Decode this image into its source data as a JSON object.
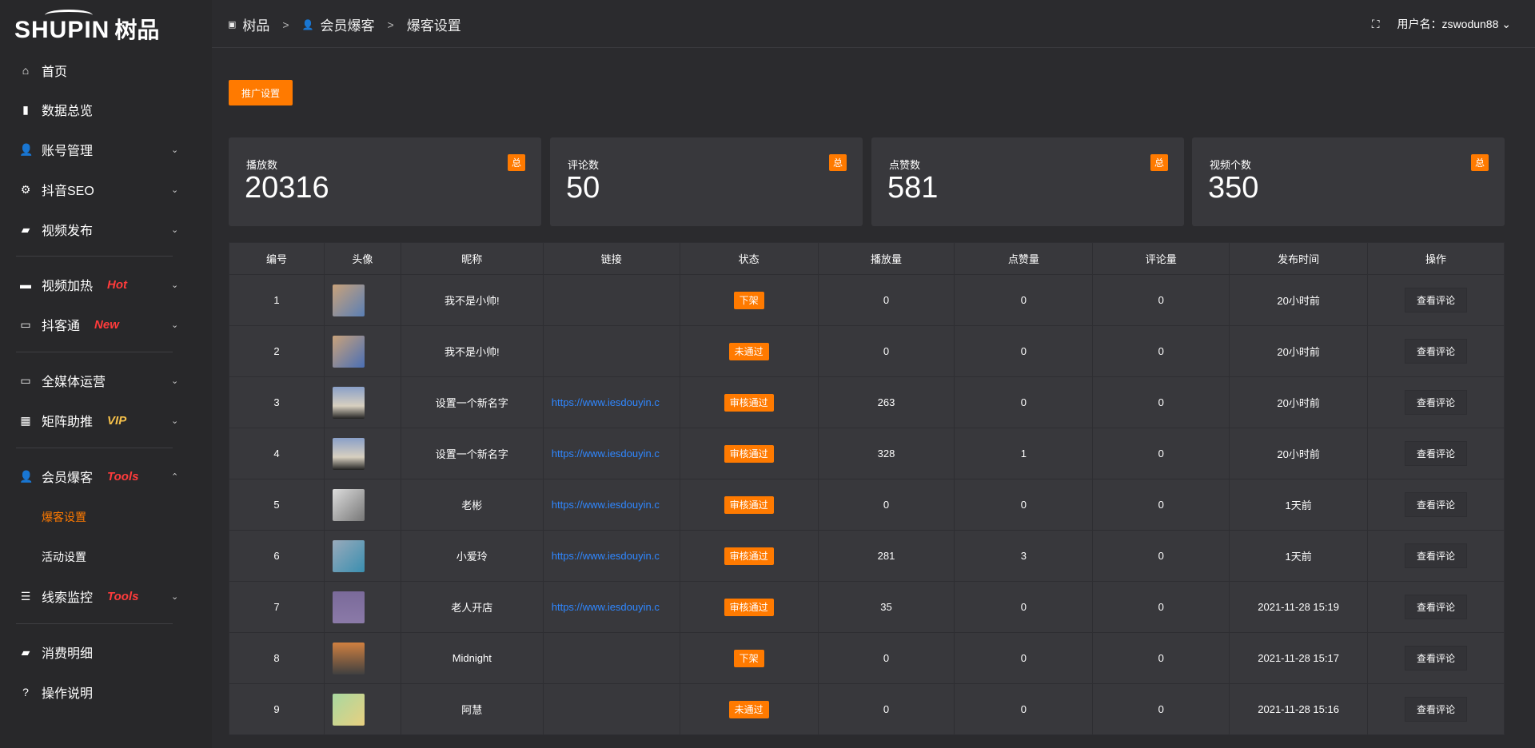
{
  "logo": {
    "en": "SHUPIN",
    "cn": "树品"
  },
  "sidebar": {
    "items": [
      {
        "label": "首页",
        "icon": "home-icon",
        "glyph": "⌂"
      },
      {
        "label": "数据总览",
        "icon": "bar-chart-icon",
        "glyph": "▮"
      },
      {
        "label": "账号管理",
        "icon": "user-icon",
        "glyph": "👤",
        "chevron": "⌄"
      },
      {
        "label": "抖音SEO",
        "icon": "gear-icon",
        "glyph": "⚙",
        "chevron": "⌄"
      },
      {
        "label": "视频发布",
        "icon": "camera-icon",
        "glyph": "▰",
        "chevron": "⌄"
      },
      {
        "label": "视频加热",
        "icon": "billboard-icon",
        "glyph": "▬",
        "tag": "Hot",
        "tag_color": "#ff3b3b",
        "chevron": "⌄"
      },
      {
        "label": "抖客通",
        "icon": "chat-icon",
        "glyph": "▭",
        "tag": "New",
        "tag_color": "#ff3b3b",
        "chevron": "⌄"
      },
      {
        "label": "全媒体运营",
        "icon": "monitor-icon",
        "glyph": "▭",
        "chevron": "⌄"
      },
      {
        "label": "矩阵助推",
        "icon": "grid-icon",
        "glyph": "▦",
        "tag": "VIP",
        "tag_color": "#f5c04a",
        "chevron": "⌄"
      },
      {
        "label": "会员爆客",
        "icon": "user-icon",
        "glyph": "👤",
        "tag": "Tools",
        "tag_color": "#ff3b3b",
        "chevron": "⌃"
      },
      {
        "label": "线索监控",
        "icon": "sliders-icon",
        "glyph": "☰",
        "tag": "Tools",
        "tag_color": "#ff3b3b",
        "chevron": "⌄"
      },
      {
        "label": "消费明细",
        "icon": "wallet-icon",
        "glyph": "▰"
      },
      {
        "label": "操作说明",
        "icon": "help-icon",
        "glyph": "?"
      }
    ],
    "subitems": [
      {
        "label": "爆客设置",
        "active": true
      },
      {
        "label": "活动设置",
        "active": false
      }
    ]
  },
  "breadcrumb": [
    "树品",
    "会员爆客",
    "爆客设置"
  ],
  "header": {
    "user": "用户名：zswodun88"
  },
  "promo_button": "推广设置",
  "stats": [
    {
      "label": "播放数",
      "value": "20316",
      "badge": "总"
    },
    {
      "label": "评论数",
      "value": "50",
      "badge": "总"
    },
    {
      "label": "点赞数",
      "value": "581",
      "badge": "总"
    },
    {
      "label": "视频个数",
      "value": "350",
      "badge": "总"
    }
  ],
  "table": {
    "headers": [
      "编号",
      "头像",
      "昵称",
      "链接",
      "状态",
      "播放量",
      "点赞量",
      "评论量",
      "发布时间",
      "操作"
    ],
    "action_label": "查看评论",
    "rows": [
      {
        "id": "1",
        "name": "我不是小帅!",
        "link": "",
        "status": "下架",
        "plays": "0",
        "likes": "0",
        "comments": "0",
        "time": "20小时前"
      },
      {
        "id": "2",
        "name": "我不是小帅!",
        "link": "",
        "status": "未通过",
        "plays": "0",
        "likes": "0",
        "comments": "0",
        "time": "20小时前"
      },
      {
        "id": "3",
        "name": "设置一个新名字",
        "link": "https://www.iesdouyin.c",
        "status": "审核通过",
        "plays": "263",
        "likes": "0",
        "comments": "0",
        "time": "20小时前"
      },
      {
        "id": "4",
        "name": "设置一个新名字",
        "link": "https://www.iesdouyin.c",
        "status": "审核通过",
        "plays": "328",
        "likes": "1",
        "comments": "0",
        "time": "20小时前"
      },
      {
        "id": "5",
        "name": "老彬",
        "link": "https://www.iesdouyin.c",
        "status": "审核通过",
        "plays": "0",
        "likes": "0",
        "comments": "0",
        "time": "1天前"
      },
      {
        "id": "6",
        "name": "小爱玲",
        "link": "https://www.iesdouyin.c",
        "status": "审核通过",
        "plays": "281",
        "likes": "3",
        "comments": "0",
        "time": "1天前"
      },
      {
        "id": "7",
        "name": "老人开店",
        "link": "https://www.iesdouyin.c",
        "status": "审核通过",
        "plays": "35",
        "likes": "0",
        "comments": "0",
        "time": "2021-11-28 15:19"
      },
      {
        "id": "8",
        "name": "Midnight",
        "link": "",
        "status": "下架",
        "plays": "0",
        "likes": "0",
        "comments": "0",
        "time": "2021-11-28 15:17"
      },
      {
        "id": "9",
        "name": "阿慧",
        "link": "",
        "status": "未通过",
        "plays": "0",
        "likes": "0",
        "comments": "0",
        "time": "2021-11-28 15:16"
      }
    ]
  },
  "colors": {
    "accent": "#ff7a00",
    "link": "#2f87ff"
  }
}
